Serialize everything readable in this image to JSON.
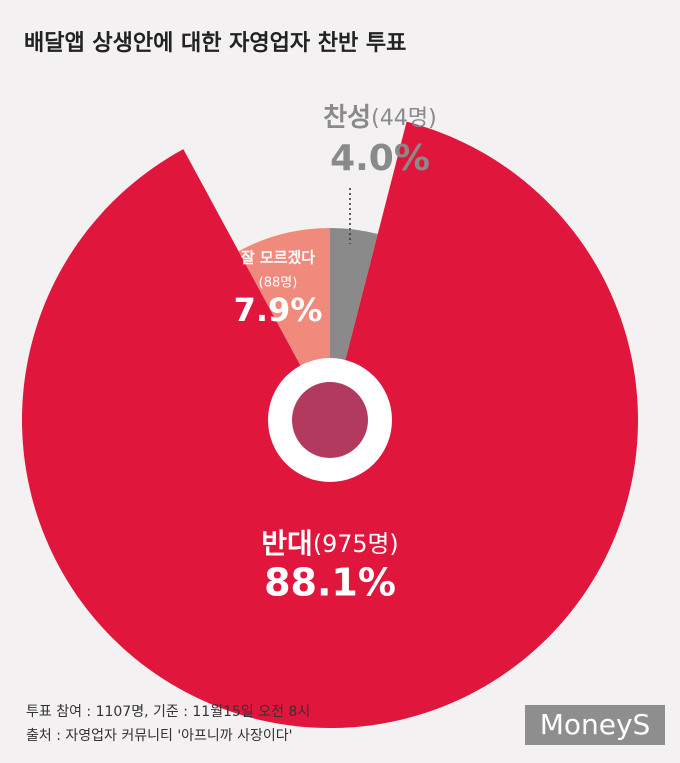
{
  "chart_data": {
    "type": "pie",
    "title": "배달앱 상생안에 대한 자영업자 찬반 투표",
    "categories": [
      "찬성",
      "반대",
      "잘 모르겠다"
    ],
    "count_labels": [
      "(44명)",
      "(975명)",
      "(88명)"
    ],
    "values": [
      4.0,
      88.1,
      7.9
    ],
    "value_labels": [
      "4.0%",
      "88.1%",
      "7.9%"
    ],
    "colors": [
      "#8a8a8a",
      "#e0163c",
      "#ef8a7c"
    ]
  },
  "notes": [
    "투표 참여 : 1107명, 기준 : 11월15일 오전 8시",
    "출처 : 자영업자 커뮤니티 '아프니까 사장이다'"
  ],
  "logo": "MoneyS"
}
